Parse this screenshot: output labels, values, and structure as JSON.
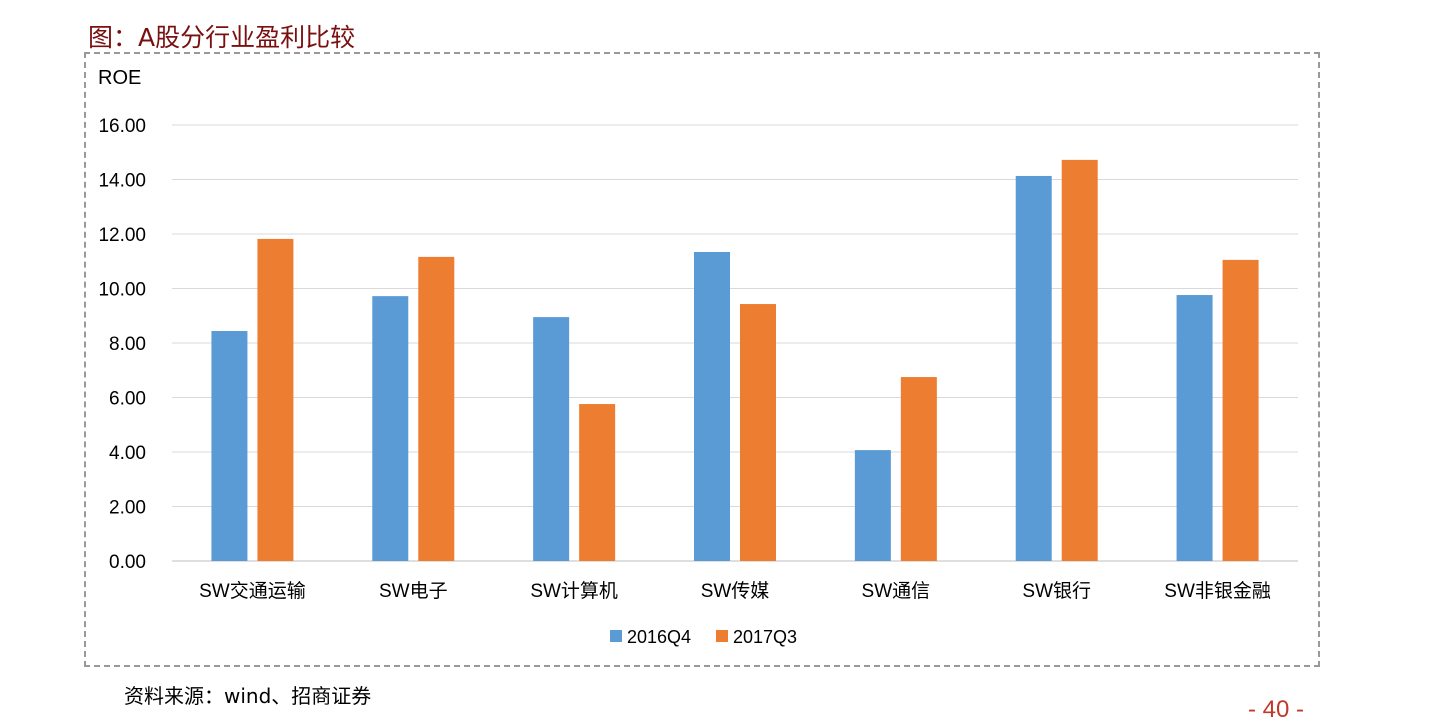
{
  "title": "图：A股分行业盈利比较",
  "source": "资料来源：wind、招商证券",
  "page_number": "- 40 -",
  "chart_data": {
    "type": "bar",
    "ylabel": "ROE",
    "ylim": [
      0,
      16
    ],
    "yticks": [
      "0.00",
      "2.00",
      "4.00",
      "6.00",
      "8.00",
      "10.00",
      "12.00",
      "14.00",
      "16.00"
    ],
    "grid": true,
    "legend_position": "bottom",
    "categories": [
      "SW交通运输",
      "SW电子",
      "SW计算机",
      "SW传媒",
      "SW通信",
      "SW银行",
      "SW非银金融"
    ],
    "series": [
      {
        "name": "2016Q4",
        "color": "#5b9bd5",
        "values": [
          8.44,
          9.72,
          8.95,
          11.34,
          4.07,
          14.13,
          9.76
        ]
      },
      {
        "name": "2017Q3",
        "color": "#ed7d31",
        "values": [
          11.82,
          11.16,
          5.76,
          9.43,
          6.75,
          14.72,
          11.05
        ]
      }
    ]
  }
}
